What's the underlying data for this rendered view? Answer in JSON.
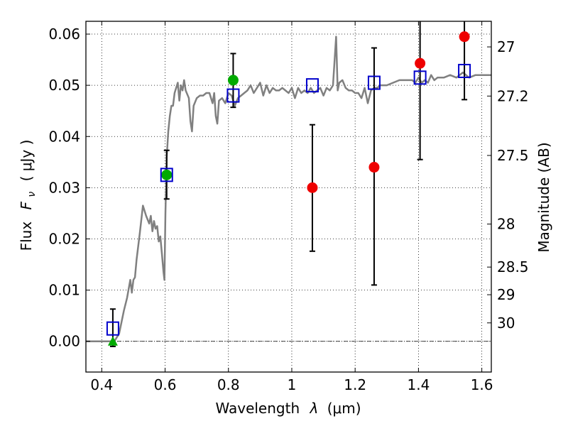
{
  "chart_data": {
    "type": "scatter",
    "x_axis": {
      "label_prefix": "Wavelength",
      "label_var": "λ",
      "label_unit": "(μm)",
      "lim": [
        0.35,
        1.63
      ],
      "ticks": [
        0.4,
        0.6,
        0.8,
        1.0,
        1.2,
        1.4,
        1.6
      ],
      "tick_labels": [
        "0.4",
        "0.6",
        "0.8",
        "1",
        "1.2",
        "1.4",
        "1.6"
      ]
    },
    "y_axis": {
      "label_prefix": "Flux",
      "label_var": "F",
      "label_sub": "ν",
      "label_unit": "( μJy )",
      "lim": [
        -0.006,
        0.0625
      ],
      "ticks": [
        0.0,
        0.01,
        0.02,
        0.03,
        0.04,
        0.05,
        0.06
      ],
      "tick_labels": [
        "0.00",
        "0.01",
        "0.02",
        "0.03",
        "0.04",
        "0.05",
        "0.06"
      ]
    },
    "y2_axis": {
      "label": "Magnitude (AB)",
      "ticks": [
        {
          "label": "27",
          "flux": 0.0575
        },
        {
          "label": "27.2",
          "flux": 0.0479
        },
        {
          "label": "27.5",
          "flux": 0.0363
        },
        {
          "label": "28",
          "flux": 0.0229
        },
        {
          "label": "28.5",
          "flux": 0.0145
        },
        {
          "label": "29",
          "flux": 0.0091
        },
        {
          "label": "30",
          "flux": 0.0036
        }
      ]
    },
    "grid": true,
    "zero_line": true,
    "colors": {
      "model": "#808080",
      "model_points": "#0000cc",
      "detections": "#00aa00",
      "measurements": "#ee0000",
      "errorbars": "#000000"
    },
    "series": [
      {
        "kind": "line",
        "points": [
          [
            0.35,
            0.0
          ],
          [
            0.44,
            0.0
          ],
          [
            0.455,
            0.0015
          ],
          [
            0.47,
            0.006
          ],
          [
            0.48,
            0.0085
          ],
          [
            0.49,
            0.012
          ],
          [
            0.495,
            0.0095
          ],
          [
            0.5,
            0.012
          ],
          [
            0.505,
            0.0125
          ],
          [
            0.51,
            0.016
          ],
          [
            0.52,
            0.021
          ],
          [
            0.53,
            0.0265
          ],
          [
            0.54,
            0.0245
          ],
          [
            0.55,
            0.023
          ],
          [
            0.555,
            0.0245
          ],
          [
            0.56,
            0.0215
          ],
          [
            0.565,
            0.0235
          ],
          [
            0.57,
            0.022
          ],
          [
            0.575,
            0.0225
          ],
          [
            0.58,
            0.0195
          ],
          [
            0.585,
            0.0205
          ],
          [
            0.59,
            0.017
          ],
          [
            0.595,
            0.0135
          ],
          [
            0.598,
            0.012
          ],
          [
            0.601,
            0.025
          ],
          [
            0.605,
            0.036
          ],
          [
            0.61,
            0.041
          ],
          [
            0.615,
            0.044
          ],
          [
            0.62,
            0.046
          ],
          [
            0.625,
            0.046
          ],
          [
            0.63,
            0.0485
          ],
          [
            0.64,
            0.0505
          ],
          [
            0.645,
            0.047
          ],
          [
            0.65,
            0.05
          ],
          [
            0.655,
            0.049
          ],
          [
            0.66,
            0.051
          ],
          [
            0.665,
            0.049
          ],
          [
            0.675,
            0.0475
          ],
          [
            0.68,
            0.043
          ],
          [
            0.685,
            0.041
          ],
          [
            0.69,
            0.046
          ],
          [
            0.7,
            0.0475
          ],
          [
            0.71,
            0.048
          ],
          [
            0.72,
            0.048
          ],
          [
            0.73,
            0.0485
          ],
          [
            0.74,
            0.0485
          ],
          [
            0.75,
            0.0465
          ],
          [
            0.755,
            0.0485
          ],
          [
            0.76,
            0.044
          ],
          [
            0.765,
            0.0425
          ],
          [
            0.77,
            0.047
          ],
          [
            0.78,
            0.0475
          ],
          [
            0.79,
            0.0465
          ],
          [
            0.8,
            0.0485
          ],
          [
            0.81,
            0.048
          ],
          [
            0.82,
            0.046
          ],
          [
            0.83,
            0.0475
          ],
          [
            0.84,
            0.048
          ],
          [
            0.85,
            0.0485
          ],
          [
            0.86,
            0.049
          ],
          [
            0.87,
            0.05
          ],
          [
            0.88,
            0.0485
          ],
          [
            0.89,
            0.0495
          ],
          [
            0.9,
            0.0505
          ],
          [
            0.91,
            0.048
          ],
          [
            0.92,
            0.05
          ],
          [
            0.93,
            0.0485
          ],
          [
            0.94,
            0.0495
          ],
          [
            0.95,
            0.049
          ],
          [
            0.96,
            0.049
          ],
          [
            0.97,
            0.0495
          ],
          [
            0.98,
            0.049
          ],
          [
            0.99,
            0.0485
          ],
          [
            1.0,
            0.0495
          ],
          [
            1.01,
            0.0475
          ],
          [
            1.02,
            0.0495
          ],
          [
            1.03,
            0.0485
          ],
          [
            1.04,
            0.049
          ],
          [
            1.05,
            0.0485
          ],
          [
            1.06,
            0.0495
          ],
          [
            1.07,
            0.0485
          ],
          [
            1.08,
            0.049
          ],
          [
            1.09,
            0.0495
          ],
          [
            1.1,
            0.048
          ],
          [
            1.11,
            0.0495
          ],
          [
            1.12,
            0.049
          ],
          [
            1.13,
            0.05
          ],
          [
            1.14,
            0.0595
          ],
          [
            1.145,
            0.049
          ],
          [
            1.15,
            0.0505
          ],
          [
            1.16,
            0.051
          ],
          [
            1.17,
            0.0495
          ],
          [
            1.18,
            0.049
          ],
          [
            1.19,
            0.049
          ],
          [
            1.2,
            0.0485
          ],
          [
            1.21,
            0.0485
          ],
          [
            1.22,
            0.0475
          ],
          [
            1.23,
            0.0495
          ],
          [
            1.24,
            0.0465
          ],
          [
            1.25,
            0.049
          ],
          [
            1.26,
            0.0495
          ],
          [
            1.27,
            0.0495
          ],
          [
            1.28,
            0.05
          ],
          [
            1.29,
            0.05
          ],
          [
            1.3,
            0.05
          ],
          [
            1.32,
            0.0505
          ],
          [
            1.34,
            0.051
          ],
          [
            1.36,
            0.051
          ],
          [
            1.38,
            0.051
          ],
          [
            1.39,
            0.0505
          ],
          [
            1.4,
            0.0515
          ],
          [
            1.41,
            0.0505
          ],
          [
            1.42,
            0.051
          ],
          [
            1.43,
            0.0505
          ],
          [
            1.44,
            0.052
          ],
          [
            1.45,
            0.051
          ],
          [
            1.46,
            0.0515
          ],
          [
            1.48,
            0.0515
          ],
          [
            1.5,
            0.052
          ],
          [
            1.52,
            0.0515
          ],
          [
            1.54,
            0.0525
          ],
          [
            1.56,
            0.0515
          ],
          [
            1.58,
            0.052
          ],
          [
            1.6,
            0.052
          ],
          [
            1.63,
            0.052
          ]
        ]
      },
      {
        "kind": "open_square",
        "points": [
          [
            0.435,
            0.0025
          ],
          [
            0.605,
            0.0325
          ],
          [
            0.815,
            0.048
          ],
          [
            1.065,
            0.05
          ],
          [
            1.26,
            0.0505
          ],
          [
            1.405,
            0.0515
          ],
          [
            1.545,
            0.0528
          ]
        ]
      },
      {
        "kind": "errorbar",
        "points": [
          {
            "x": 0.435,
            "low": -0.001,
            "high": 0.0063
          },
          {
            "x": 0.605,
            "low": 0.0278,
            "high": 0.0373
          },
          {
            "x": 0.815,
            "low": 0.0457,
            "high": 0.0562
          },
          {
            "x": 1.065,
            "low": 0.0176,
            "high": 0.0423
          },
          {
            "x": 1.26,
            "low": 0.011,
            "high": 0.0573
          },
          {
            "x": 1.405,
            "low": 0.0355,
            "high": 0.0625
          },
          {
            "x": 1.545,
            "low": 0.0472,
            "high": 0.0625
          }
        ]
      },
      {
        "kind": "filled_circle_green",
        "points": [
          [
            0.605,
            0.0325
          ],
          [
            0.815,
            0.051
          ]
        ]
      },
      {
        "kind": "triangle_green",
        "points": [
          [
            0.435,
            0.0
          ]
        ]
      },
      {
        "kind": "filled_circle_red",
        "points": [
          [
            1.065,
            0.03
          ],
          [
            1.26,
            0.034
          ],
          [
            1.405,
            0.0543
          ],
          [
            1.545,
            0.0595
          ]
        ]
      }
    ]
  }
}
